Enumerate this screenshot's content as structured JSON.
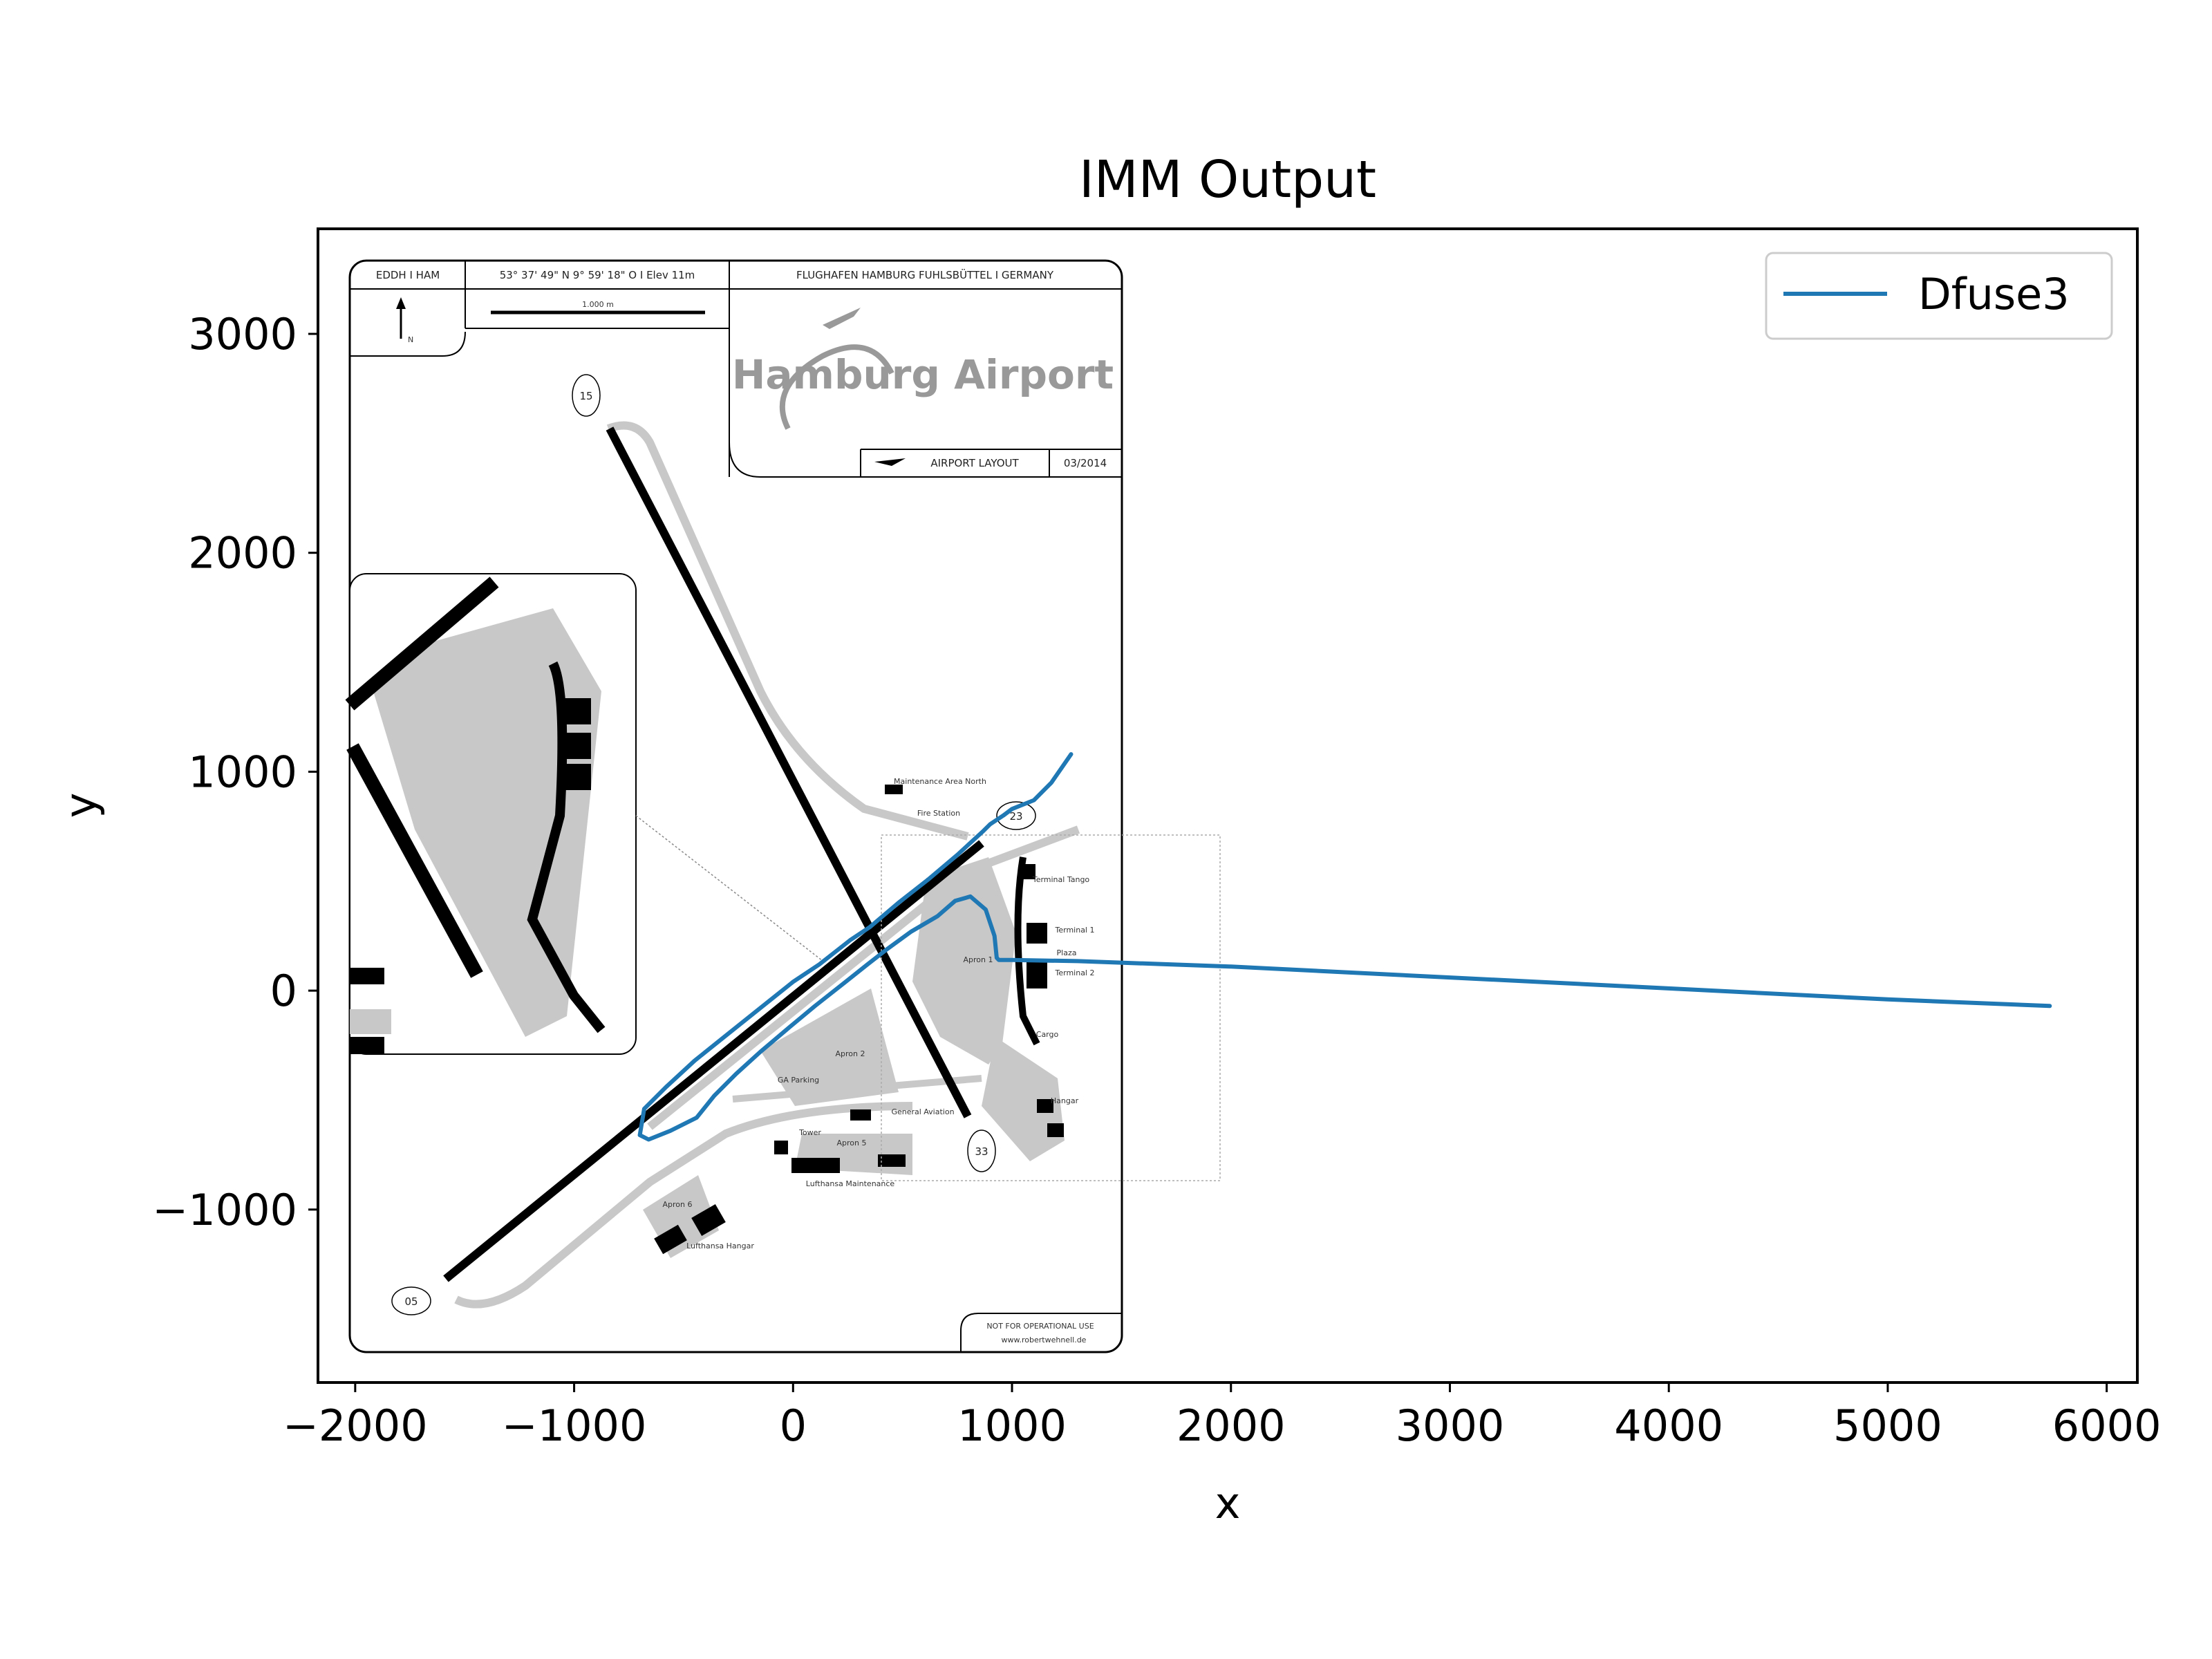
{
  "chart_data": {
    "type": "line",
    "title": "IMM Output",
    "xlabel": "x",
    "ylabel": "y",
    "xlim": [
      -2170,
      6140
    ],
    "ylim": [
      -1790,
      3480
    ],
    "xticks": [
      -2000,
      -1000,
      0,
      1000,
      2000,
      3000,
      4000,
      5000,
      6000
    ],
    "xtick_labels": [
      "−2000",
      "−1000",
      "0",
      "1000",
      "2000",
      "3000",
      "4000",
      "5000",
      "6000"
    ],
    "yticks": [
      -1000,
      0,
      1000,
      2000,
      3000
    ],
    "ytick_labels": [
      "−1000",
      "0",
      "1000",
      "2000",
      "3000"
    ],
    "grid": false,
    "legend_position": "top-right",
    "background_image": "Hamburg Airport layout map",
    "series": [
      {
        "name": "Dfuse3",
        "color": "#1f77b4",
        "x": [
          1270,
          1180,
          1100,
          1000,
          960,
          900,
          870,
          750,
          620,
          480,
          350,
          260,
          120,
          0,
          -150,
          -300,
          -450,
          -580,
          -680,
          -700,
          -660,
          -560,
          -440,
          -360,
          -260,
          -150,
          -20,
          100,
          240,
          340,
          430,
          540,
          660,
          740,
          810,
          880,
          920,
          930,
          940,
          1000,
          1300,
          2000,
          3000,
          4000,
          5000,
          5740
        ],
        "y": [
          1080,
          950,
          870,
          830,
          800,
          760,
          730,
          620,
          510,
          400,
          290,
          230,
          120,
          40,
          -80,
          -200,
          -320,
          -440,
          -540,
          -660,
          -680,
          -640,
          -580,
          -480,
          -380,
          -280,
          -170,
          -70,
          40,
          120,
          190,
          270,
          340,
          410,
          430,
          370,
          250,
          150,
          140,
          140,
          135,
          110,
          60,
          10,
          -40,
          -70
        ]
      }
    ],
    "map_labels": {
      "header_code": "EDDH I HAM",
      "header_coords": "53° 37' 49\" N   9° 59' 18\" O  I  Elev 11m",
      "header_name": "FLUGHAFEN HAMBURG FUHLSBÜTTEL  I  GERMANY",
      "north": "N",
      "scale": "1.000 m",
      "brand": "Hamburg Airport",
      "layout_label": "AIRPORT LAYOUT",
      "layout_date": "03/2014",
      "runway_15": "15",
      "runway_33": "33",
      "runway_05": "05",
      "runway_23": "23",
      "maintenance_north": "Maintenance Area North",
      "fire_station": "Fire Station",
      "terminal_tango": "Terminal Tango",
      "terminal_1": "Terminal 1",
      "plaza": "Plaza",
      "terminal_2": "Terminal 2",
      "apron_1": "Apron 1",
      "apron_2": "Apron 2",
      "apron_5": "Apron 5",
      "apron_6": "Apron 6",
      "cargo": "Cargo",
      "hangar": "Hangar",
      "ga_parking": "GA Parking",
      "general_aviation": "General Aviation",
      "tower": "Tower",
      "lufthansa_maintenance": "Lufthansa Maintenance",
      "lufthansa_hangar": "Lufthansa Hangar",
      "not_operational": "NOT FOR OPERATIONAL USE",
      "website": "www.robertwehnell.de"
    }
  }
}
